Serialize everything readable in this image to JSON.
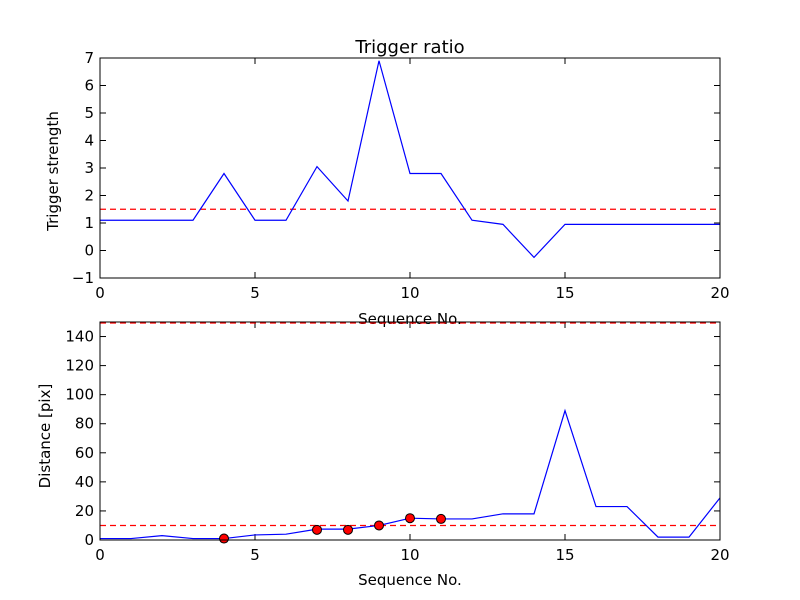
{
  "chart_data": [
    {
      "type": "line",
      "title": "Trigger ratio",
      "xlabel": "Sequence No.",
      "ylabel": "Trigger strength",
      "xlim": [
        0,
        20
      ],
      "ylim": [
        -1,
        7
      ],
      "xticks": [
        "0",
        "5",
        "10",
        "15",
        "20"
      ],
      "yticks": [
        "−1",
        "0",
        "1",
        "2",
        "3",
        "4",
        "5",
        "6",
        "7"
      ],
      "x": [
        0,
        1,
        2,
        3,
        4,
        5,
        6,
        7,
        8,
        9,
        10,
        11,
        12,
        13,
        14,
        15,
        16,
        17,
        18,
        19,
        20
      ],
      "series": [
        {
          "color": "#0000ff",
          "values": [
            1.1,
            1.1,
            1.1,
            1.1,
            2.8,
            1.1,
            1.1,
            3.05,
            1.8,
            6.9,
            2.8,
            2.8,
            1.1,
            0.95,
            -0.25,
            0.95,
            0.95,
            0.95,
            0.95,
            0.95,
            0.95
          ]
        }
      ],
      "threshold_lines": [
        {
          "y": 1.5,
          "color": "#ff0000",
          "style": "dashed"
        }
      ],
      "grid": false
    },
    {
      "type": "line",
      "title": "",
      "xlabel": "Sequence No.",
      "ylabel": "Distance [pix]",
      "xlim": [
        0,
        20
      ],
      "ylim": [
        0,
        150
      ],
      "xticks": [
        "0",
        "5",
        "10",
        "15",
        "20"
      ],
      "yticks": [
        "0",
        "20",
        "40",
        "60",
        "80",
        "100",
        "120",
        "140"
      ],
      "x": [
        0,
        1,
        2,
        3,
        4,
        5,
        6,
        7,
        8,
        9,
        10,
        11,
        12,
        13,
        14,
        15,
        16,
        17,
        18,
        19,
        20
      ],
      "series": [
        {
          "color": "#0000ff",
          "values": [
            1,
            1,
            3,
            1,
            1,
            3.5,
            4,
            7.5,
            7.5,
            10,
            15,
            14.5,
            14.5,
            18,
            18,
            89,
            23,
            23,
            2,
            2,
            29
          ]
        }
      ],
      "markers": {
        "color": "#ff0000",
        "points": [
          {
            "x": 4,
            "y": 1
          },
          {
            "x": 7,
            "y": 7
          },
          {
            "x": 8,
            "y": 7
          },
          {
            "x": 9,
            "y": 10
          },
          {
            "x": 10,
            "y": 15
          },
          {
            "x": 11,
            "y": 14.5
          }
        ]
      },
      "threshold_lines": [
        {
          "y": 150,
          "color": "#ff0000",
          "style": "dashed"
        },
        {
          "y": 10,
          "color": "#ff0000",
          "style": "dashed"
        }
      ],
      "grid": false
    }
  ]
}
